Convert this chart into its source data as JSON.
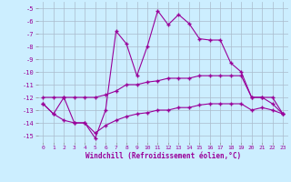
{
  "xlabel": "Windchill (Refroidissement éolien,°C)",
  "background_color": "#cceeff",
  "grid_color": "#aabbcc",
  "line_color": "#990099",
  "xlim": [
    -0.5,
    23.5
  ],
  "ylim": [
    -15.5,
    -4.5
  ],
  "yticks": [
    -5,
    -6,
    -7,
    -8,
    -9,
    -10,
    -11,
    -12,
    -13,
    -14,
    -15
  ],
  "xticks": [
    0,
    1,
    2,
    3,
    4,
    5,
    6,
    7,
    8,
    9,
    10,
    11,
    12,
    13,
    14,
    15,
    16,
    17,
    18,
    19,
    20,
    21,
    22,
    23
  ],
  "series1_x": [
    0,
    1,
    2,
    3,
    4,
    5,
    6,
    7,
    8,
    9,
    10,
    11,
    12,
    13,
    14,
    15,
    16,
    17,
    18,
    19,
    20,
    21,
    22,
    23
  ],
  "series1_y": [
    -12.5,
    -13.3,
    -12.0,
    -14.0,
    -14.0,
    -15.2,
    -13.0,
    -6.8,
    -7.8,
    -10.3,
    -8.0,
    -5.2,
    -6.3,
    -5.5,
    -6.2,
    -7.4,
    -7.5,
    -7.5,
    -9.3,
    -10.0,
    -12.0,
    -12.0,
    -12.5,
    -13.3
  ],
  "series2_x": [
    0,
    1,
    2,
    3,
    4,
    5,
    6,
    7,
    8,
    9,
    10,
    11,
    12,
    13,
    14,
    15,
    16,
    17,
    18,
    19,
    20,
    21,
    22,
    23
  ],
  "series2_y": [
    -12.0,
    -12.0,
    -12.0,
    -12.0,
    -12.0,
    -12.0,
    -11.8,
    -11.5,
    -11.0,
    -11.0,
    -10.8,
    -10.7,
    -10.5,
    -10.5,
    -10.5,
    -10.3,
    -10.3,
    -10.3,
    -10.3,
    -10.3,
    -12.0,
    -12.0,
    -12.0,
    -13.3
  ],
  "series3_x": [
    0,
    1,
    2,
    3,
    4,
    5,
    6,
    7,
    8,
    9,
    10,
    11,
    12,
    13,
    14,
    15,
    16,
    17,
    18,
    19,
    20,
    21,
    22,
    23
  ],
  "series3_y": [
    -12.5,
    -13.3,
    -13.8,
    -14.0,
    -14.0,
    -14.8,
    -14.2,
    -13.8,
    -13.5,
    -13.3,
    -13.2,
    -13.0,
    -13.0,
    -12.8,
    -12.8,
    -12.6,
    -12.5,
    -12.5,
    -12.5,
    -12.5,
    -13.0,
    -12.8,
    -13.0,
    -13.3
  ]
}
